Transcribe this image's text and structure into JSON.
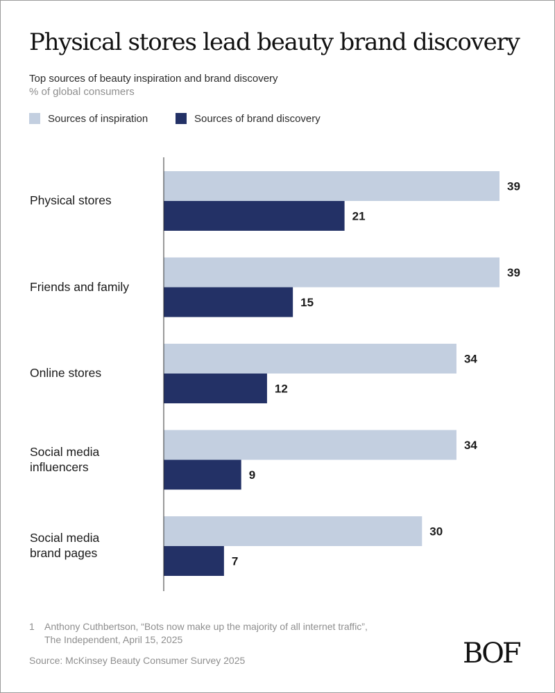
{
  "title": "Physical stores lead beauty brand discovery",
  "subtitle": "Top sources of beauty inspiration and brand discovery",
  "unit_label": "% of global consumers",
  "colors": {
    "inspiration": "#c3cfe0",
    "discovery": "#233166",
    "axis": "#333333"
  },
  "legend": [
    {
      "label": "Sources of inspiration",
      "color": "#c3cfe0"
    },
    {
      "label": "Sources of brand discovery",
      "color": "#233166"
    }
  ],
  "footnote": {
    "number": "1",
    "line1": "Anthony Cuthbertson, “Bots now make up the majority of all internet traffic”,",
    "line2": "The Independent, April 15, 2025"
  },
  "source": "Source: McKinsey Beauty Consumer Survey 2025",
  "logo": "BOF",
  "chart_data": {
    "type": "bar",
    "orientation": "horizontal",
    "title": "Physical stores lead beauty brand discovery",
    "subtitle": "Top sources of beauty inspiration and brand discovery",
    "ylabel": "% of global consumers",
    "xlim": [
      0,
      40
    ],
    "categories": [
      [
        "Physical stores"
      ],
      [
        "Friends and family"
      ],
      [
        "Online stores"
      ],
      [
        "Social media",
        "influencers"
      ],
      [
        "Social media",
        "brand pages"
      ]
    ],
    "series": [
      {
        "name": "Sources of inspiration",
        "values": [
          39,
          39,
          34,
          34,
          30
        ]
      },
      {
        "name": "Sources of brand discovery",
        "values": [
          21,
          15,
          12,
          9,
          7
        ]
      }
    ],
    "data_labels": true,
    "legend_position": "top-left"
  }
}
